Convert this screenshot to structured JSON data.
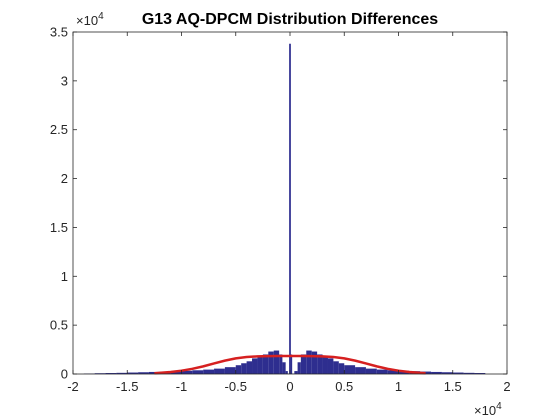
{
  "chart_data": {
    "type": "histogram",
    "title": "G13 AQ-DPCM Distribution Differences",
    "xlabel": "",
    "ylabel": "",
    "x_multiplier": "×10",
    "x_multiplier_exp": "4",
    "y_multiplier": "×10",
    "y_multiplier_exp": "4",
    "xlim": [
      -20000,
      20000
    ],
    "ylim": [
      0,
      35000
    ],
    "x_ticks": [
      -20000,
      -15000,
      -10000,
      -5000,
      0,
      5000,
      10000,
      15000,
      20000
    ],
    "x_tick_labels": [
      "-2",
      "-1.5",
      "-1",
      "-0.5",
      "0",
      "0.5",
      "1",
      "1.5",
      "2"
    ],
    "y_ticks": [
      0,
      5000,
      10000,
      15000,
      20000,
      25000,
      30000,
      35000
    ],
    "y_tick_labels": [
      "0",
      "0.5",
      "1",
      "1.5",
      "2",
      "2.5",
      "3",
      "3.5"
    ],
    "grid": false,
    "legend": "none",
    "colors": {
      "histogram": "#2e2e8f",
      "fit": "#d62020",
      "axes": "#262626"
    },
    "series": [
      {
        "kind": "histogram",
        "bins": [
          [
            -19000,
            50
          ],
          [
            -18000,
            80
          ],
          [
            -17000,
            100
          ],
          [
            -16000,
            120
          ],
          [
            -15000,
            150
          ],
          [
            -14000,
            180
          ],
          [
            -13000,
            210
          ],
          [
            -12000,
            250
          ],
          [
            -11000,
            290
          ],
          [
            -10000,
            330
          ],
          [
            -9000,
            380
          ],
          [
            -8000,
            450
          ],
          [
            -7000,
            550
          ],
          [
            -6000,
            700
          ],
          [
            -5000,
            900
          ],
          [
            -4500,
            1100
          ],
          [
            -4000,
            1300
          ],
          [
            -3500,
            1600
          ],
          [
            -3000,
            1800
          ],
          [
            -2500,
            2000
          ],
          [
            -2000,
            2300
          ],
          [
            -1500,
            2400
          ],
          [
            -1000,
            2000
          ],
          [
            -700,
            1200
          ],
          [
            -400,
            300
          ],
          [
            -200,
            50
          ],
          [
            -60,
            2000
          ],
          [
            0,
            33800
          ],
          [
            60,
            2000
          ],
          [
            200,
            50
          ],
          [
            400,
            300
          ],
          [
            700,
            1200
          ],
          [
            1000,
            2000
          ],
          [
            1500,
            2400
          ],
          [
            2000,
            2300
          ],
          [
            2500,
            2000
          ],
          [
            3000,
            1800
          ],
          [
            3500,
            1600
          ],
          [
            4000,
            1300
          ],
          [
            4500,
            1100
          ],
          [
            5000,
            900
          ],
          [
            6000,
            700
          ],
          [
            7000,
            550
          ],
          [
            8000,
            450
          ],
          [
            9000,
            380
          ],
          [
            10000,
            330
          ],
          [
            11000,
            290
          ],
          [
            12000,
            250
          ],
          [
            13000,
            210
          ],
          [
            14000,
            180
          ],
          [
            15000,
            150
          ],
          [
            16000,
            120
          ],
          [
            17000,
            100
          ]
        ]
      },
      {
        "kind": "fit-line",
        "x": [
          -12500,
          -11000,
          -10000,
          -9000,
          -8000,
          -7000,
          -6000,
          -5000,
          -4000,
          -3000,
          -2000,
          -1000,
          0,
          1000,
          2000,
          3000,
          4000,
          5000,
          6000,
          7000,
          8000,
          9000,
          10000,
          11000,
          12500
        ],
        "y": [
          80,
          200,
          340,
          530,
          780,
          1080,
          1370,
          1600,
          1740,
          1800,
          1830,
          1840,
          1840,
          1840,
          1830,
          1800,
          1740,
          1600,
          1370,
          1080,
          780,
          530,
          340,
          200,
          80
        ]
      }
    ]
  }
}
